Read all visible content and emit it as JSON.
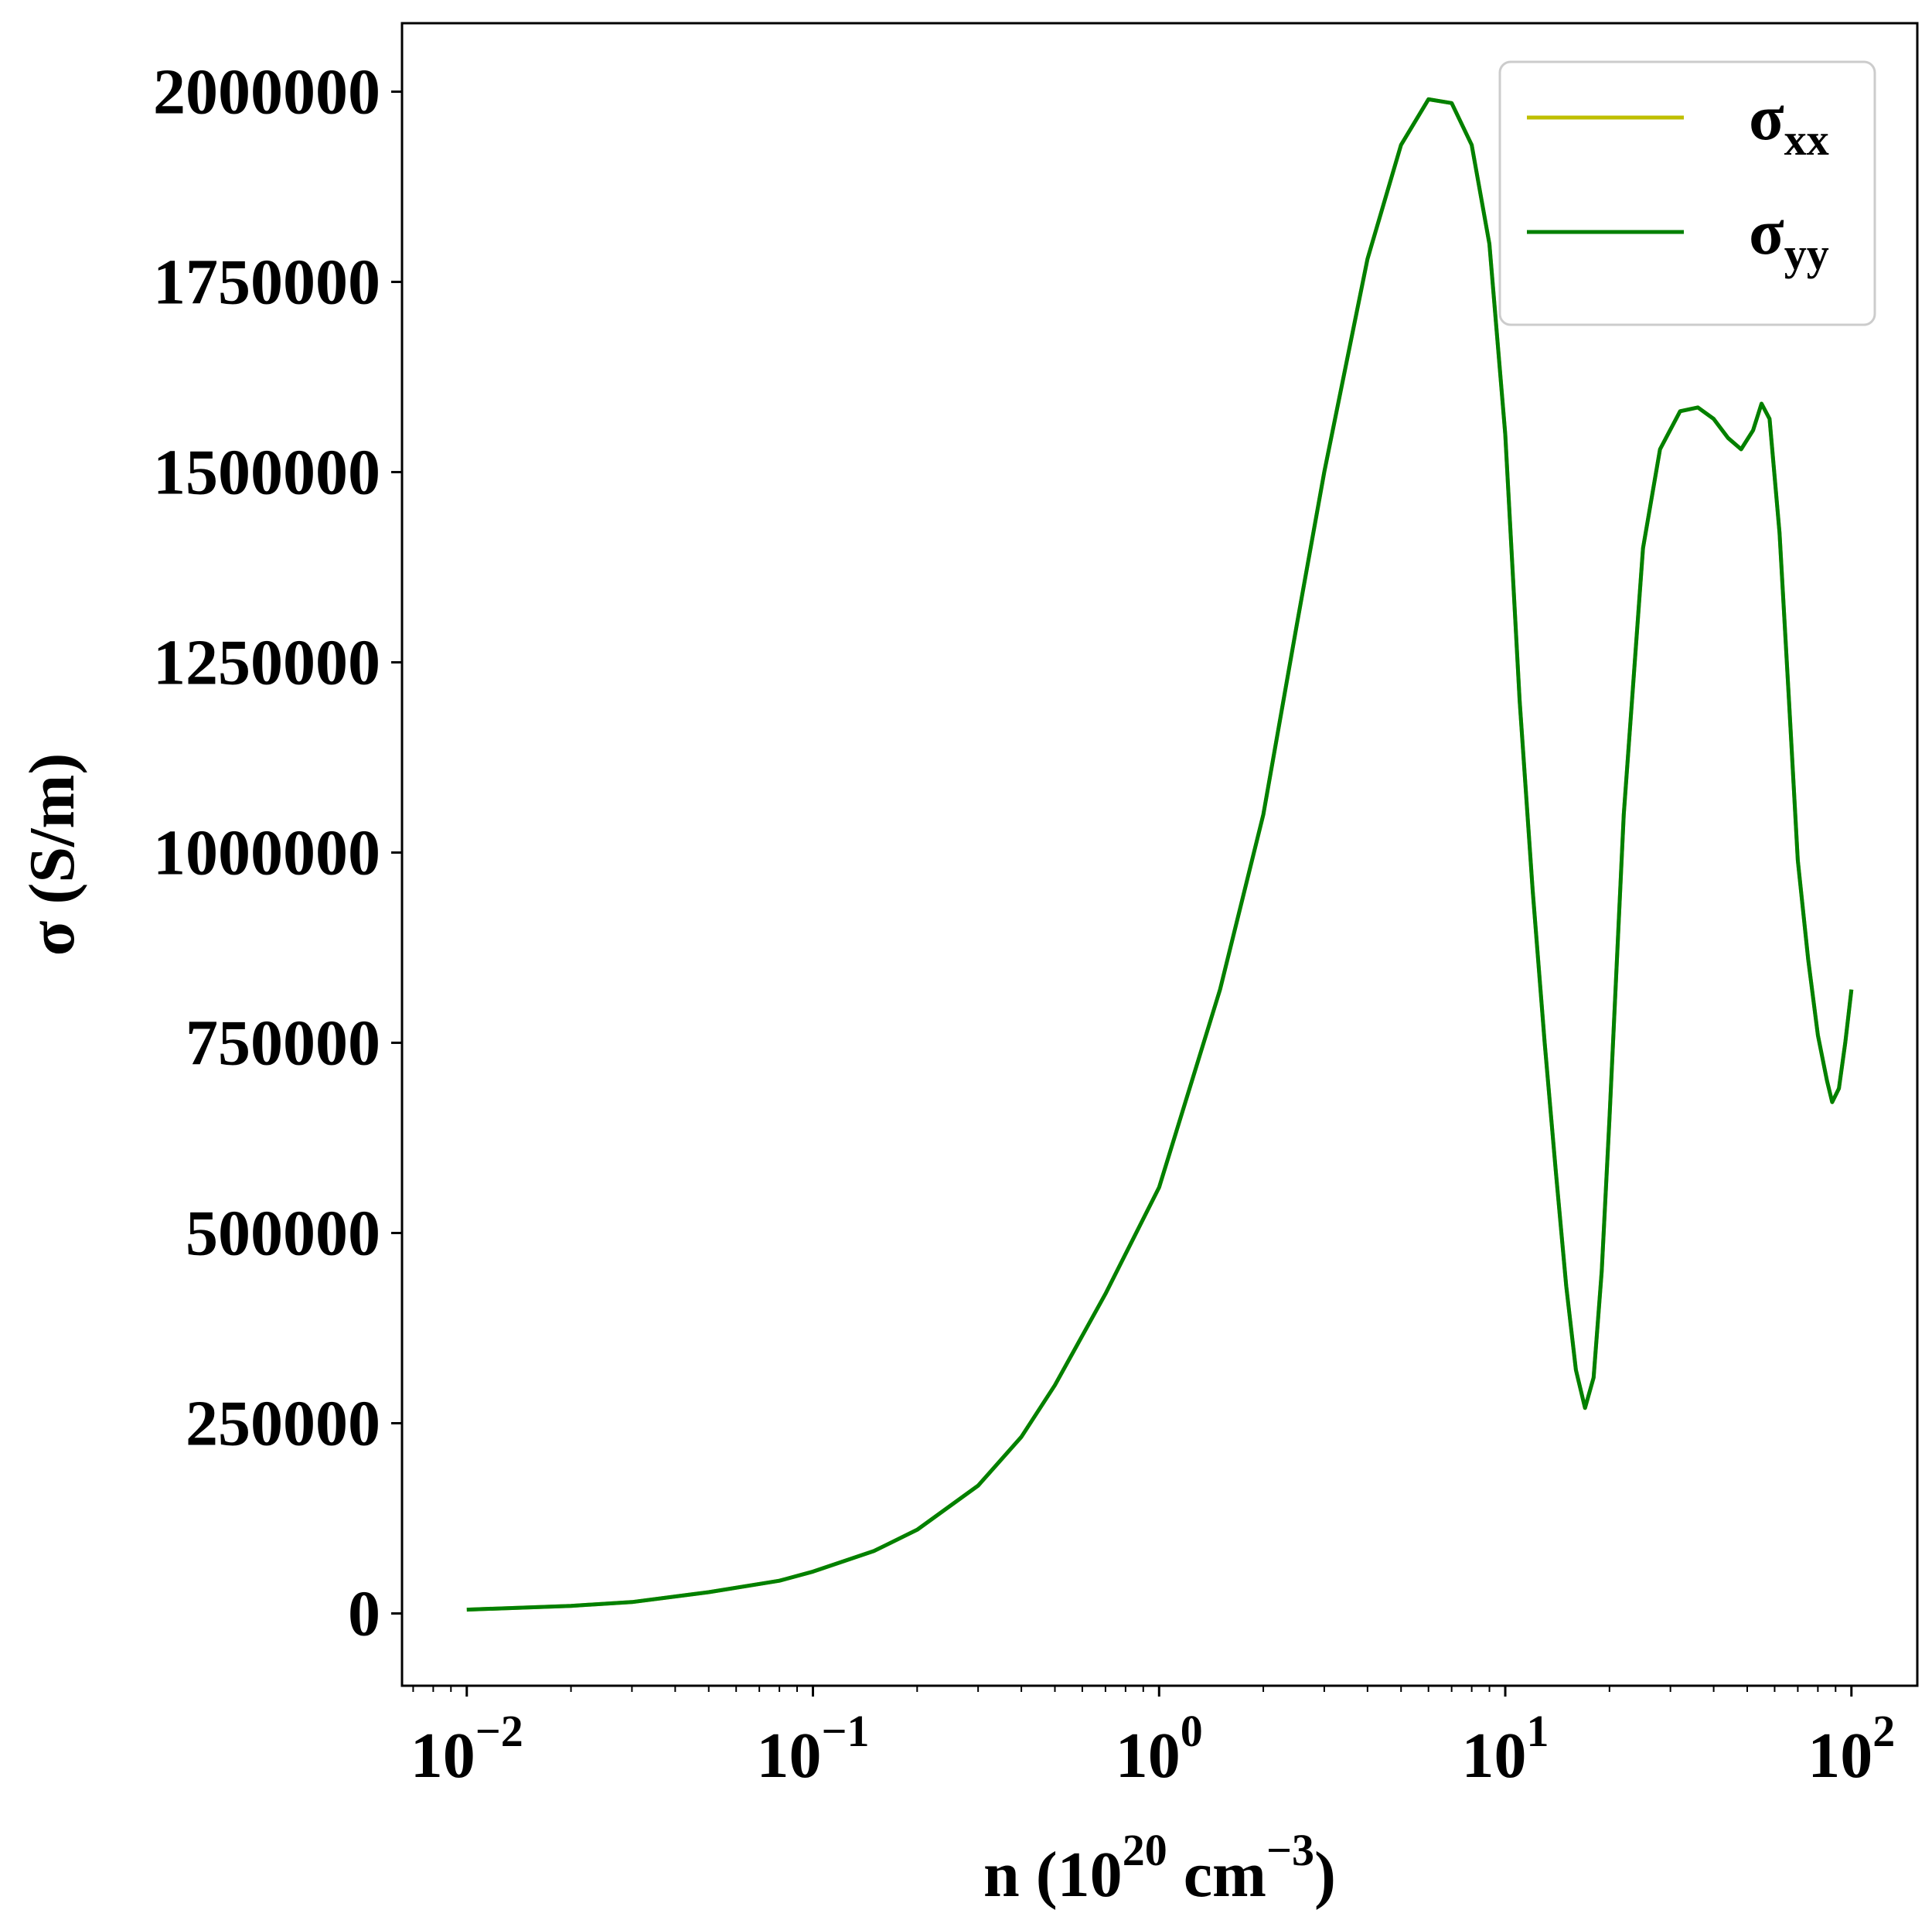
{
  "chart_data": {
    "type": "line",
    "title": "",
    "xlabel": {
      "base": "n (10",
      "exp1": "20",
      "mid": " cm",
      "exp2": "−3",
      "end": ")"
    },
    "ylabel": "σ (S/m)",
    "xscale": "log",
    "xlim": [
      0.0065,
      155
    ],
    "ylim": [
      -95000,
      2090000
    ],
    "grid": false,
    "legend_position": "top-right",
    "x_ticks": [
      {
        "value": 0.01,
        "base": "10",
        "exp": "−2"
      },
      {
        "value": 0.1,
        "base": "10",
        "exp": "−1"
      },
      {
        "value": 1,
        "base": "10",
        "exp": "0"
      },
      {
        "value": 10,
        "base": "10",
        "exp": "1"
      },
      {
        "value": 100,
        "base": "10",
        "exp": "2"
      }
    ],
    "y_ticks": [
      {
        "value": 0,
        "label": "0"
      },
      {
        "value": 250000,
        "label": "250000"
      },
      {
        "value": 500000,
        "label": "500000"
      },
      {
        "value": 750000,
        "label": "750000"
      },
      {
        "value": 1000000,
        "label": "1000000"
      },
      {
        "value": 1250000,
        "label": "1250000"
      },
      {
        "value": 1500000,
        "label": "1500000"
      },
      {
        "value": 1750000,
        "label": "1750000"
      },
      {
        "value": 2000000,
        "label": "2000000"
      }
    ],
    "series": [
      {
        "name": "σxx",
        "symbol": "σ",
        "sub": "xx",
        "color": "#bfbf00",
        "x": [
          0.01,
          0.02,
          0.03,
          0.05,
          0.08,
          0.1,
          0.15,
          0.2,
          0.3,
          0.4,
          0.5,
          0.7,
          1.0,
          1.5,
          2.0,
          2.5,
          3.0,
          4.0,
          5.0,
          6.0,
          7.0,
          8.0,
          9.0,
          10,
          11,
          12,
          13,
          14,
          15,
          16,
          17,
          18,
          19,
          20,
          22,
          25,
          28,
          32,
          36,
          40,
          44,
          48,
          52,
          55,
          58,
          62,
          66,
          70,
          75,
          80,
          85,
          88,
          92,
          96,
          100
        ],
        "y": [
          5000,
          10000,
          15000,
          28000,
          43000,
          55000,
          82000,
          110000,
          168000,
          232000,
          300000,
          420000,
          560000,
          820000,
          1050000,
          1300000,
          1500000,
          1780000,
          1930000,
          1990000,
          1985000,
          1930000,
          1800000,
          1550000,
          1200000,
          950000,
          750000,
          580000,
          430000,
          320000,
          270000,
          310000,
          450000,
          650000,
          1050000,
          1400000,
          1530000,
          1580000,
          1585000,
          1570000,
          1545000,
          1530000,
          1555000,
          1590000,
          1570000,
          1420000,
          1200000,
          990000,
          860000,
          760000,
          700000,
          672000,
          690000,
          750000,
          820000
        ]
      },
      {
        "name": "σyy",
        "symbol": "σ",
        "sub": "yy",
        "color": "#008000",
        "x": [
          0.01,
          0.02,
          0.03,
          0.05,
          0.08,
          0.1,
          0.15,
          0.2,
          0.3,
          0.4,
          0.5,
          0.7,
          1.0,
          1.5,
          2.0,
          2.5,
          3.0,
          4.0,
          5.0,
          6.0,
          7.0,
          8.0,
          9.0,
          10,
          11,
          12,
          13,
          14,
          15,
          16,
          17,
          18,
          19,
          20,
          22,
          25,
          28,
          32,
          36,
          40,
          44,
          48,
          52,
          55,
          58,
          62,
          66,
          70,
          75,
          80,
          85,
          88,
          92,
          96,
          100
        ],
        "y": [
          5000,
          10000,
          15000,
          28000,
          43000,
          55000,
          82000,
          110000,
          168000,
          232000,
          300000,
          420000,
          560000,
          820000,
          1050000,
          1300000,
          1500000,
          1780000,
          1930000,
          1990000,
          1985000,
          1930000,
          1800000,
          1550000,
          1200000,
          950000,
          750000,
          580000,
          430000,
          320000,
          270000,
          310000,
          450000,
          650000,
          1050000,
          1400000,
          1530000,
          1580000,
          1585000,
          1570000,
          1545000,
          1530000,
          1555000,
          1590000,
          1570000,
          1420000,
          1200000,
          990000,
          860000,
          760000,
          700000,
          672000,
          690000,
          750000,
          820000
        ]
      }
    ]
  }
}
